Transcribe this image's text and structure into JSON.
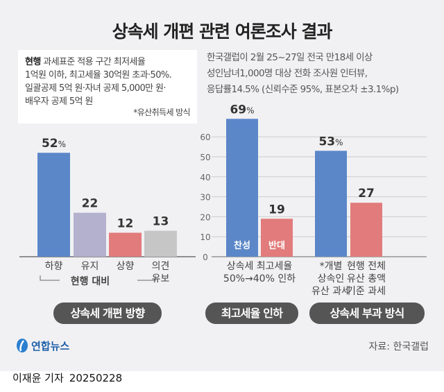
{
  "title": "상속세 개편 관련 여론조사 결과",
  "note": {
    "bold": "현행",
    "lines": [
      "과세표준 적용 구간 최저세율",
      "1억원 이하, 최고세율 30억원 초과·50%.",
      "일괄공제 5억 원·자녀 공제 5,000만 원·",
      "배우자 공제 5억 원"
    ],
    "footnote": "*유산취득세 방식"
  },
  "survey_note": [
    "한국갤럽이 2월 25~27일 전국 만18세 이상",
    "성인남녀1,000명 대상 전화 조사원 인터뷰,",
    "응답률14.5% (신뢰수준 95%, 표본오차 ±3.1%p)"
  ],
  "colors": {
    "blue": "#5b87c8",
    "lavender": "#b4b1cf",
    "red": "#e27b7b",
    "grey": "#c6c6c6",
    "pill": "#555555"
  },
  "chart_data": [
    {
      "type": "bar",
      "title": "상속세 개편 방향",
      "categories": [
        "하향",
        "유지",
        "상향",
        "의견\n유보"
      ],
      "values": [
        52,
        22,
        12,
        13
      ],
      "value_labels": [
        "52%",
        "22",
        "12",
        "13"
      ],
      "group_label": "현행 대비",
      "colors": [
        "#5b87c8",
        "#b4b1cf",
        "#e27b7b",
        "#c6c6c6"
      ]
    },
    {
      "type": "bar",
      "title": "최고세율 인하",
      "categories": [
        "상속세 최고세율\n50%→40% 인하"
      ],
      "series": [
        {
          "name": "찬성",
          "values": [
            69
          ]
        },
        {
          "name": "반대",
          "values": [
            19
          ]
        }
      ],
      "value_labels": [
        "69%",
        "19"
      ],
      "yticks": [
        0,
        10,
        20,
        30,
        40,
        50,
        60
      ],
      "ylim": [
        0,
        70
      ],
      "grid": true
    },
    {
      "type": "bar",
      "title": "상속세 부과 방식",
      "categories": [
        "*개별\n상속인\n유산 과세",
        "현행 전체\n유산 총액\n기준 과세"
      ],
      "values": [
        53,
        27
      ],
      "value_labels": [
        "53%",
        "27"
      ]
    }
  ],
  "footer": {
    "logo": "연합뉴스",
    "source": "자료: 한국갤럽",
    "reporter": "이재윤 기자",
    "date": "20250228"
  }
}
